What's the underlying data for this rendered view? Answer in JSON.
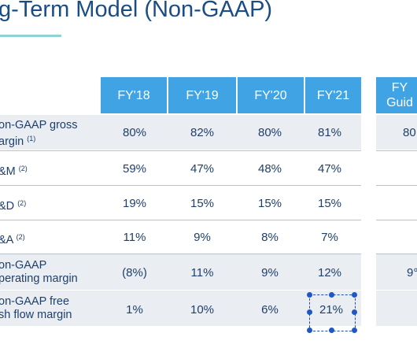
{
  "title": "g-Term Model (Non-GAAP)",
  "columns": [
    "FY'18",
    "FY'19",
    "FY'20",
    "FY'21"
  ],
  "guidance_header": [
    "FY",
    "Guid"
  ],
  "rows": [
    {
      "label_lines": [
        "on-GAAP gross",
        "argin"
      ],
      "footnote": "(1)",
      "values": [
        "80%",
        "82%",
        "80%",
        "81%"
      ],
      "guidance": "80"
    },
    {
      "label_lines": [
        "&M"
      ],
      "footnote": "(2)",
      "values": [
        "59%",
        "47%",
        "48%",
        "47%"
      ],
      "guidance": ""
    },
    {
      "label_lines": [
        "&D"
      ],
      "footnote": "(2)",
      "values": [
        "19%",
        "15%",
        "15%",
        "15%"
      ],
      "guidance": ""
    },
    {
      "label_lines": [
        "&A"
      ],
      "footnote": "(2)",
      "values": [
        "11%",
        "9%",
        "8%",
        "7%"
      ],
      "guidance": ""
    },
    {
      "label_lines": [
        "on-GAAP",
        "perating margin"
      ],
      "footnote": "",
      "values": [
        "(8%)",
        "11%",
        "9%",
        "12%"
      ],
      "guidance": "9°"
    },
    {
      "label_lines": [
        "on-GAAP free",
        "sh flow margin"
      ],
      "footnote": "",
      "values": [
        "1%",
        "10%",
        "6%",
        "21%"
      ],
      "guidance": ""
    }
  ],
  "colors": {
    "header_bg": "#3fa3e4",
    "title": "#1a4c86",
    "text": "#1f3f6a",
    "shaded_row": "#eaeef3",
    "accent": "#8fd3d6",
    "selection": "#1f57c4"
  }
}
